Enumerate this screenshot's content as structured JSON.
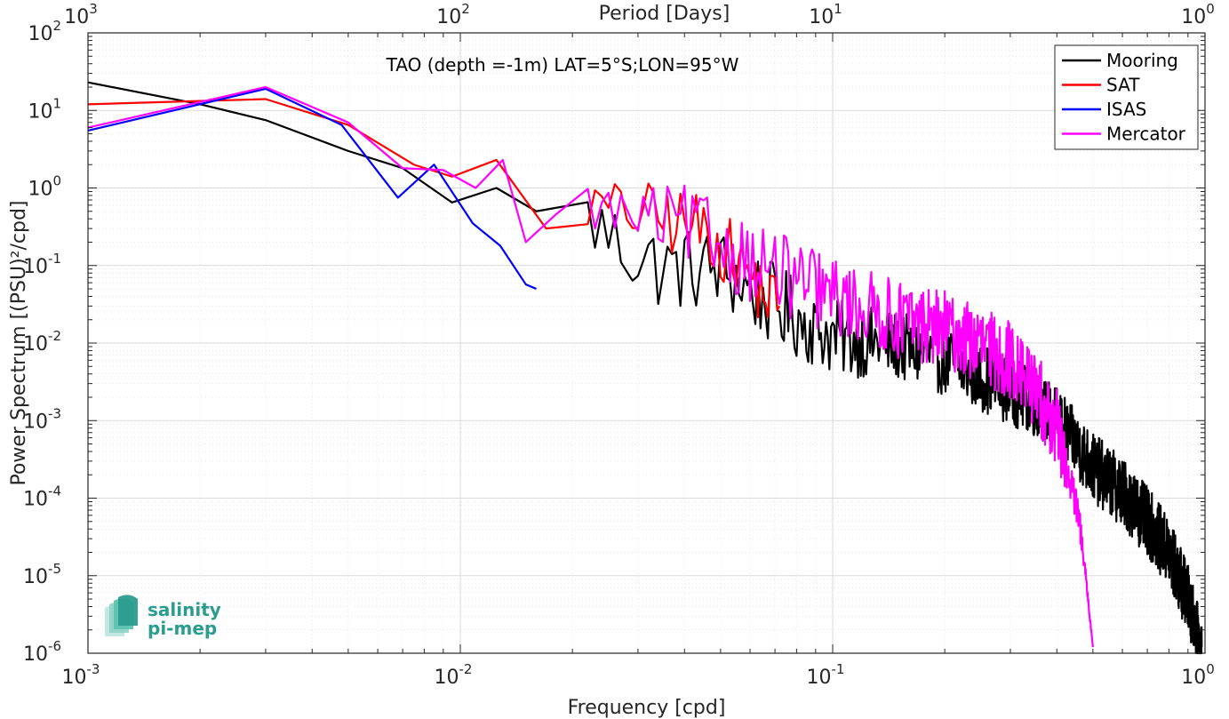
{
  "chart_data": {
    "type": "line",
    "title": "TAO (depth =-1m) LAT=5°S;LON=95°W",
    "xlabel": "Frequency [cpd]",
    "ylabel": "Power Spectrum [(PSU)²/cpd]",
    "x2label": "Period [Days]",
    "xscale": "log",
    "yscale": "log",
    "xlim": [
      0.001,
      1
    ],
    "ylim": [
      1e-06,
      100
    ],
    "x_ticks": [
      {
        "value": 0.001,
        "base": "10",
        "exp": "-3"
      },
      {
        "value": 0.01,
        "base": "10",
        "exp": "-2"
      },
      {
        "value": 0.1,
        "base": "10",
        "exp": "-1"
      },
      {
        "value": 1,
        "base": "10",
        "exp": "0"
      }
    ],
    "x2_ticks": [
      {
        "value": 0.001,
        "base": "10",
        "exp": "3"
      },
      {
        "value": 0.01,
        "base": "10",
        "exp": "2"
      },
      {
        "value": 0.1,
        "base": "10",
        "exp": "1"
      },
      {
        "value": 1,
        "base": "10",
        "exp": "0"
      }
    ],
    "y_ticks": [
      {
        "value": 100,
        "base": "10",
        "exp": "2"
      },
      {
        "value": 10,
        "base": "10",
        "exp": "1"
      },
      {
        "value": 1,
        "base": "10",
        "exp": "0"
      },
      {
        "value": 0.1,
        "base": "10",
        "exp": "-1"
      },
      {
        "value": 0.01,
        "base": "10",
        "exp": "-2"
      },
      {
        "value": 0.001,
        "base": "10",
        "exp": "-3"
      },
      {
        "value": 0.0001,
        "base": "10",
        "exp": "-4"
      },
      {
        "value": 1e-05,
        "base": "10",
        "exp": "-5"
      },
      {
        "value": 1e-06,
        "base": "10",
        "exp": "-6"
      }
    ],
    "grid": true,
    "legend_position": "top-right",
    "series": [
      {
        "name": "Mooring",
        "color": "#000000",
        "style": "noisy",
        "x": [
          0.001,
          0.002,
          0.003,
          0.005,
          0.007,
          0.0095,
          0.0125,
          0.016,
          0.022,
          0.028,
          0.035,
          0.05,
          0.07,
          0.1,
          0.15,
          0.2,
          0.3,
          0.4,
          0.5,
          0.6,
          0.7,
          0.8,
          0.9,
          0.98
        ],
        "y": [
          23,
          12,
          7.5,
          3.0,
          1.8,
          0.65,
          1.0,
          0.5,
          0.4,
          0.16,
          0.09,
          0.09,
          0.03,
          0.012,
          0.009,
          0.006,
          0.0025,
          0.0011,
          0.00025,
          0.00012,
          5e-05,
          2e-05,
          5e-06,
          1.2e-06
        ],
        "jitter": [
          0,
          0,
          0,
          0,
          0,
          0,
          0,
          0,
          0.5,
          0.55,
          0.55,
          0.55,
          0.55,
          0.5,
          0.45,
          0.45,
          0.45,
          0.4,
          0.45,
          0.45,
          0.45,
          0.45,
          0.45,
          0.35
        ]
      },
      {
        "name": "SAT",
        "color": "#ff0000",
        "style": "noisy",
        "x": [
          0.001,
          0.003,
          0.005,
          0.0075,
          0.0095,
          0.0125,
          0.017,
          0.022,
          0.028,
          0.035,
          0.045,
          0.055,
          0.065,
          0.072
        ],
        "y": [
          12,
          14,
          6.5,
          2.0,
          1.4,
          2.3,
          0.3,
          0.6,
          0.5,
          0.4,
          0.3,
          0.12,
          0.045,
          0.03
        ],
        "jitter": [
          0,
          0,
          0,
          0,
          0,
          0,
          0,
          0.3,
          0.4,
          0.45,
          0.45,
          0.45,
          0.45,
          0.4
        ]
      },
      {
        "name": "ISAS",
        "color": "#0000ff",
        "style": "smooth",
        "x": [
          0.001,
          0.003,
          0.0048,
          0.0068,
          0.0085,
          0.0108,
          0.0128,
          0.015,
          0.016
        ],
        "y": [
          5.5,
          19,
          6.5,
          0.75,
          2.0,
          0.35,
          0.18,
          0.057,
          0.05
        ]
      },
      {
        "name": "Mercator",
        "color": "#ff00ff",
        "style": "noisy",
        "x": [
          0.001,
          0.003,
          0.005,
          0.007,
          0.009,
          0.011,
          0.013,
          0.015,
          0.018,
          0.022,
          0.03,
          0.04,
          0.055,
          0.075,
          0.1,
          0.15,
          0.2,
          0.3,
          0.35,
          0.4,
          0.43,
          0.46,
          0.48,
          0.5
        ],
        "y": [
          6,
          20,
          7.0,
          1.8,
          1.7,
          1.0,
          2.3,
          0.2,
          0.45,
          0.6,
          0.4,
          0.35,
          0.15,
          0.07,
          0.04,
          0.02,
          0.015,
          0.006,
          0.0025,
          0.0008,
          0.0002,
          5e-05,
          8e-06,
          1.2e-06
        ],
        "jitter": [
          0,
          0,
          0,
          0,
          0,
          0,
          0,
          0,
          0.2,
          0.3,
          0.4,
          0.5,
          0.55,
          0.55,
          0.5,
          0.5,
          0.5,
          0.5,
          0.5,
          0.5,
          0.3,
          0.2,
          0.1,
          0.0
        ]
      }
    ]
  },
  "logo": {
    "line1": "salinity",
    "line2": "pi-mep",
    "color": "#2a9d8f"
  }
}
